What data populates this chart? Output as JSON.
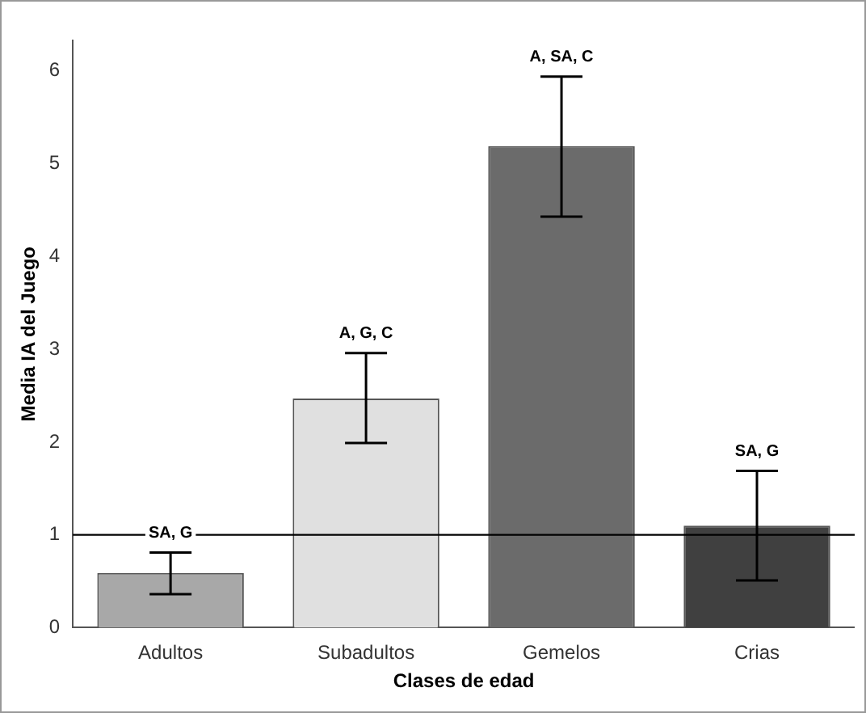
{
  "chart_data": {
    "type": "bar",
    "xlabel": "Clases de edad",
    "ylabel": "Media IA del Juego",
    "categories": [
      "Adultos",
      "Subadultos",
      "Gemelos",
      "Crias"
    ],
    "values": [
      0.59,
      2.47,
      5.19,
      1.1
    ],
    "colors": [
      "#a8a8a8",
      "#e0e0e0",
      "#6b6b6b",
      "#404040"
    ],
    "errors": [
      [
        0.36,
        0.81
      ],
      [
        1.99,
        2.96
      ],
      [
        4.43,
        5.94
      ],
      [
        0.51,
        1.69
      ]
    ],
    "ylim": [
      0,
      6.33
    ],
    "yticks": [
      0,
      1,
      2,
      3,
      4,
      5,
      6
    ],
    "grid": false,
    "legend": false,
    "ref_lines": [
      {
        "axis": "y",
        "value": 1,
        "color": "#000000"
      }
    ],
    "annotations": [
      {
        "text": "SA, G",
        "x": "Adultos",
        "y": 0.81
      },
      {
        "text": "A, G, C",
        "x": "Subadultos",
        "y": 2.96
      },
      {
        "text": "A, SA, C",
        "x": "Gemelos",
        "y": 5.94
      },
      {
        "text": "SA, G",
        "x": "Crias",
        "y": 1.69
      }
    ]
  }
}
